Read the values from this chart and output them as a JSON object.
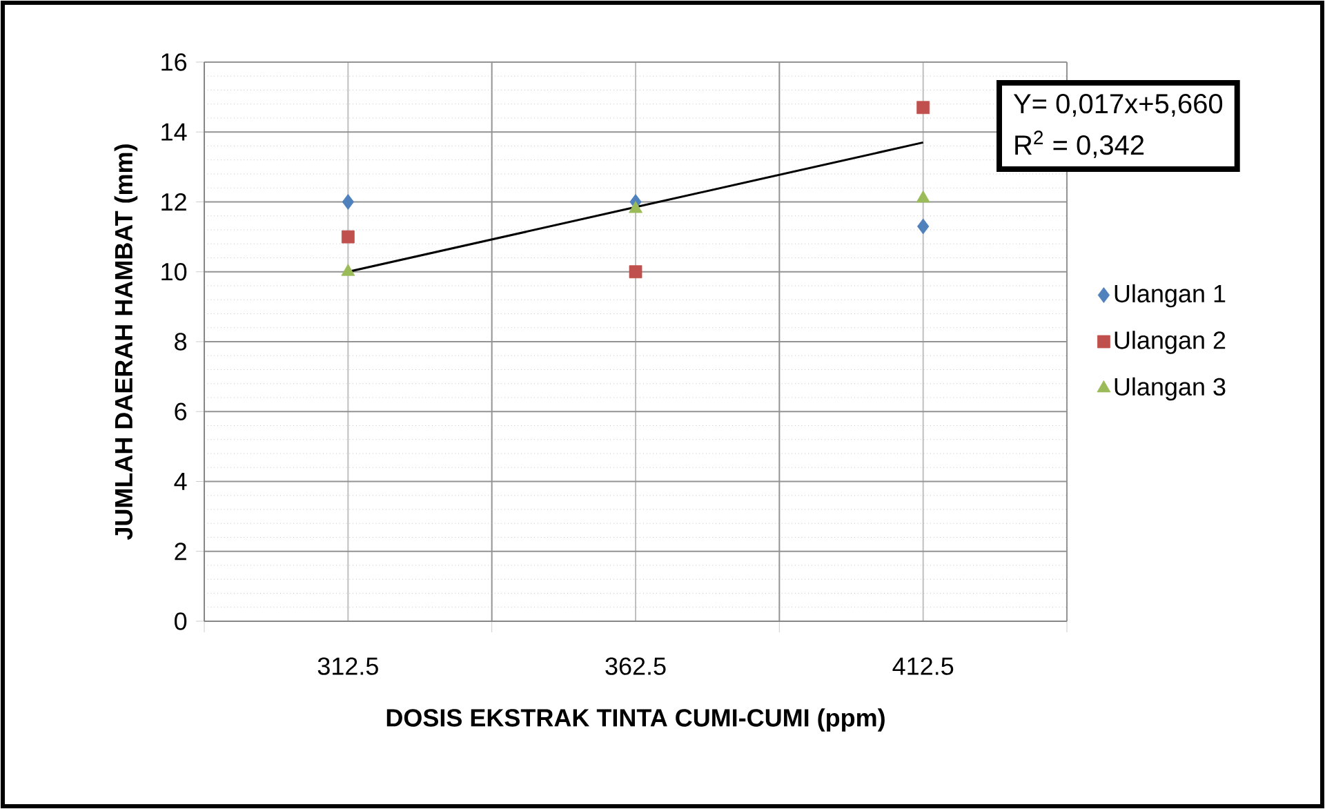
{
  "chart_data": {
    "type": "scatter",
    "xlabel": "DOSIS EKSTRAK TINTA CUMI-CUMI (ppm)",
    "ylabel": "JUMLAH DAERAH HAMBAT (mm)",
    "categories": [
      "312.5",
      "362.5",
      "412.5"
    ],
    "ylim": [
      0,
      16
    ],
    "yticks": [
      0,
      2,
      4,
      6,
      8,
      10,
      12,
      14,
      16
    ],
    "grid": true,
    "legend": "right",
    "series": [
      {
        "name": "Ulangan 1",
        "color": "#4f81bd",
        "marker": "diamond",
        "values": [
          12.0,
          12.0,
          11.3
        ]
      },
      {
        "name": "Ulangan 2",
        "color": "#c0504d",
        "marker": "square",
        "values": [
          11.0,
          10.0,
          14.7
        ]
      },
      {
        "name": "Ulangan 3",
        "color": "#9bbb59",
        "marker": "triangle",
        "values": [
          10.0,
          11.8,
          12.1
        ]
      },
      {
        "type": "line",
        "color": "#000000",
        "values": [
          10.0,
          11.85,
          13.7
        ]
      }
    ],
    "annotations": [
      "Y= 0,017x+5,660",
      "R$^{2}$ = 0,342"
    ]
  }
}
